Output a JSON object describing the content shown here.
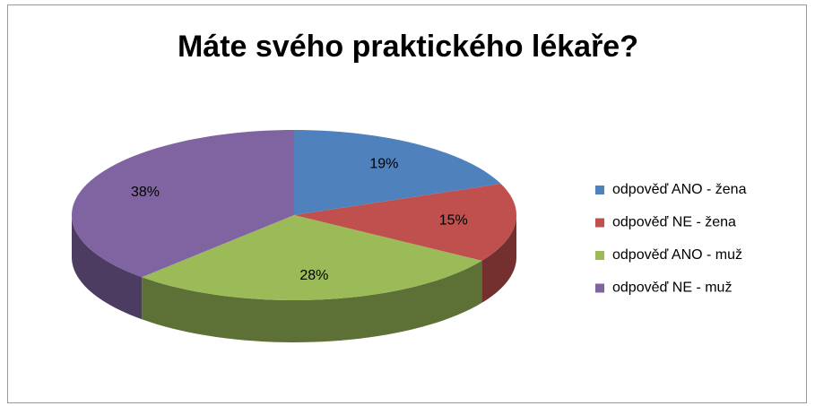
{
  "chart_data": {
    "type": "pie3d",
    "title": "Máte svého praktického lékaře?",
    "categories": [
      "odpověď ANO - žena",
      "odpověď NE - žena",
      "odpověď ANO - muž",
      "odpověď NE - muž"
    ],
    "values": [
      19,
      15,
      28,
      38
    ],
    "value_labels": [
      "19%",
      "15%",
      "28%",
      "38%"
    ],
    "colors": [
      "#4f81bd",
      "#c0504d",
      "#9bbb59",
      "#8064a2"
    ],
    "legend": "right"
  }
}
